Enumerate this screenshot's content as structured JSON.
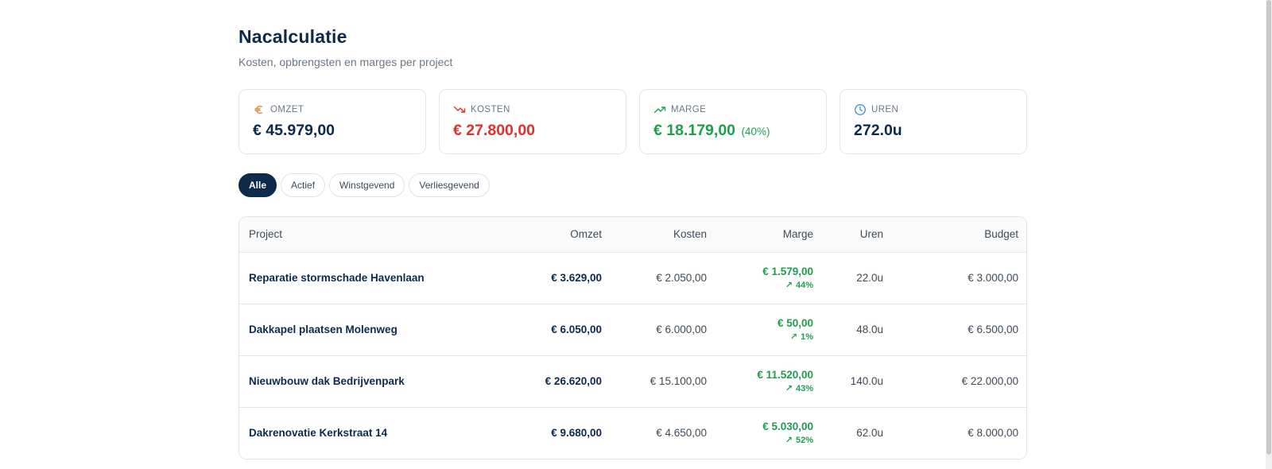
{
  "header": {
    "title": "Nacalculatie",
    "subtitle": "Kosten, opbrengsten en marges per project"
  },
  "summary": {
    "omzet": {
      "label": "OMZET",
      "value": "€ 45.979,00",
      "icon": "euro-icon",
      "color": "#d98b3a"
    },
    "kosten": {
      "label": "KOSTEN",
      "value": "€ 27.800,00",
      "icon": "trending-down-icon",
      "color": "#e03131"
    },
    "marge": {
      "label": "MARGE",
      "value": "€ 18.179,00",
      "pct": "(40%)",
      "icon": "trending-up-icon",
      "color": "#1e9e4f"
    },
    "uren": {
      "label": "UREN",
      "value": "272.0u",
      "icon": "clock-icon",
      "color": "#3b8fd9"
    }
  },
  "filters": {
    "alle": "Alle",
    "actief": "Actief",
    "winstgevend": "Winstgevend",
    "verliesgevend": "Verliesgevend",
    "selected": "Alle"
  },
  "table": {
    "headers": {
      "project": "Project",
      "omzet": "Omzet",
      "kosten": "Kosten",
      "marge": "Marge",
      "uren": "Uren",
      "budget": "Budget"
    },
    "rows": [
      {
        "project": "Reparatie stormschade Havenlaan",
        "omzet": "€ 3.629,00",
        "kosten": "€ 2.050,00",
        "marge": "€ 1.579,00",
        "marge_pct": "44%",
        "uren": "22.0u",
        "budget": "€ 3.000,00"
      },
      {
        "project": "Dakkapel plaatsen Molenweg",
        "omzet": "€ 6.050,00",
        "kosten": "€ 6.000,00",
        "marge": "€ 50,00",
        "marge_pct": "1%",
        "uren": "48.0u",
        "budget": "€ 6.500,00"
      },
      {
        "project": "Nieuwbouw dak Bedrijvenpark",
        "omzet": "€ 26.620,00",
        "kosten": "€ 15.100,00",
        "marge": "€ 11.520,00",
        "marge_pct": "43%",
        "uren": "140.0u",
        "budget": "€ 22.000,00"
      },
      {
        "project": "Dakrenovatie Kerkstraat 14",
        "omzet": "€ 9.680,00",
        "kosten": "€ 4.650,00",
        "marge": "€ 5.030,00",
        "marge_pct": "52%",
        "uren": "62.0u",
        "budget": "€ 8.000,00"
      }
    ]
  },
  "colors": {
    "navy": "#0d2a4a",
    "positive": "#1e9e4f",
    "negative": "#e03131"
  }
}
